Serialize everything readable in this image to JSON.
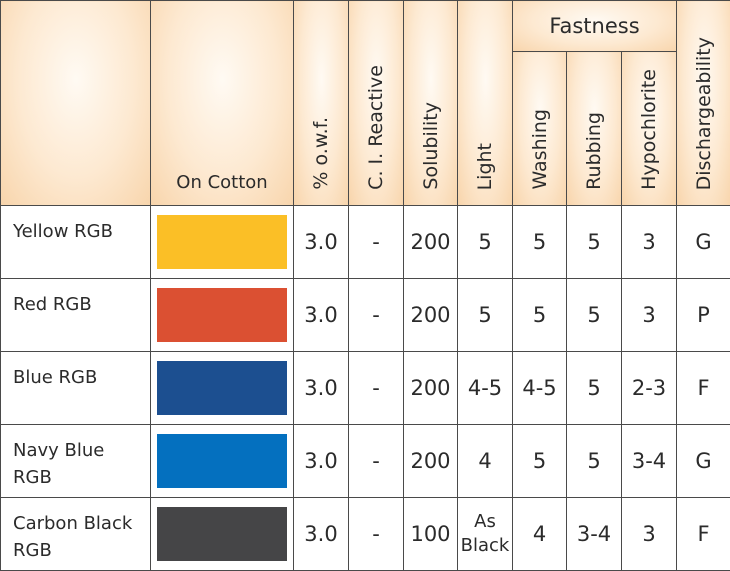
{
  "header": {
    "on_cotton": "On Cotton",
    "owf": "% o.w.f.",
    "ci_reactive": "C. I. Reactive",
    "solubility": "Solubility",
    "light": "Light",
    "fastness": "Fastness",
    "washing": "Washing",
    "rubbing": "Rubbing",
    "hypochlorite": "Hypochlorite",
    "dischargeability": "Dischargeability"
  },
  "rows": [
    {
      "name": "Yellow RGB",
      "color": "#fbbf26",
      "owf": "3.0",
      "ci": "-",
      "solubility": "200",
      "light": "5",
      "washing": "5",
      "rubbing": "5",
      "hypochlorite": "3",
      "dischargeability": "G"
    },
    {
      "name": "Red RGB",
      "color": "#db5032",
      "owf": "3.0",
      "ci": "-",
      "solubility": "200",
      "light": "5",
      "washing": "5",
      "rubbing": "5",
      "hypochlorite": "3",
      "dischargeability": "P"
    },
    {
      "name": "Blue RGB",
      "color": "#1c4f90",
      "owf": "3.0",
      "ci": "-",
      "solubility": "200",
      "light": "4-5",
      "washing": "4-5",
      "rubbing": "5",
      "hypochlorite": "2-3",
      "dischargeability": "F"
    },
    {
      "name": "Navy Blue RGB",
      "color": "#0470bf",
      "owf": "3.0",
      "ci": "-",
      "solubility": "200",
      "light": "4",
      "washing": "5",
      "rubbing": "5",
      "hypochlorite": "3-4",
      "dischargeability": "G"
    },
    {
      "name": "Carbon Black RGB",
      "color": "#454547",
      "owf": "3.0",
      "ci": "-",
      "solubility": "100",
      "light": "As Black",
      "washing": "4",
      "rubbing": "3-4",
      "hypochlorite": "3",
      "dischargeability": "F"
    }
  ]
}
